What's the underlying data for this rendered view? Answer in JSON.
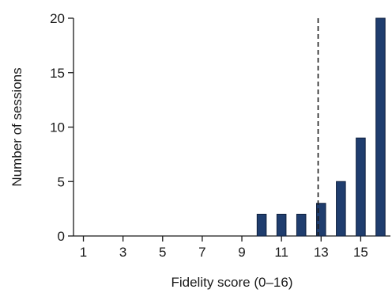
{
  "chart_data": {
    "type": "bar",
    "xlabel": "Fidelity score (0–16)",
    "ylabel": "Number of sessions",
    "x": [
      1,
      2,
      3,
      4,
      5,
      6,
      7,
      8,
      9,
      10,
      11,
      12,
      13,
      14,
      15,
      16
    ],
    "values": [
      0,
      0,
      0,
      0,
      0,
      0,
      0,
      0,
      0,
      2,
      2,
      2,
      3,
      5,
      9,
      20
    ],
    "xlim": [
      0.5,
      16.5
    ],
    "ylim": [
      0,
      20
    ],
    "x_ticks": [
      1,
      3,
      5,
      7,
      9,
      11,
      13,
      15
    ],
    "y_ticks": [
      0,
      5,
      10,
      15,
      20
    ],
    "reference_line_x": 12.85,
    "bar_color": "#1f3d6e",
    "grid": false,
    "legend": "none"
  }
}
